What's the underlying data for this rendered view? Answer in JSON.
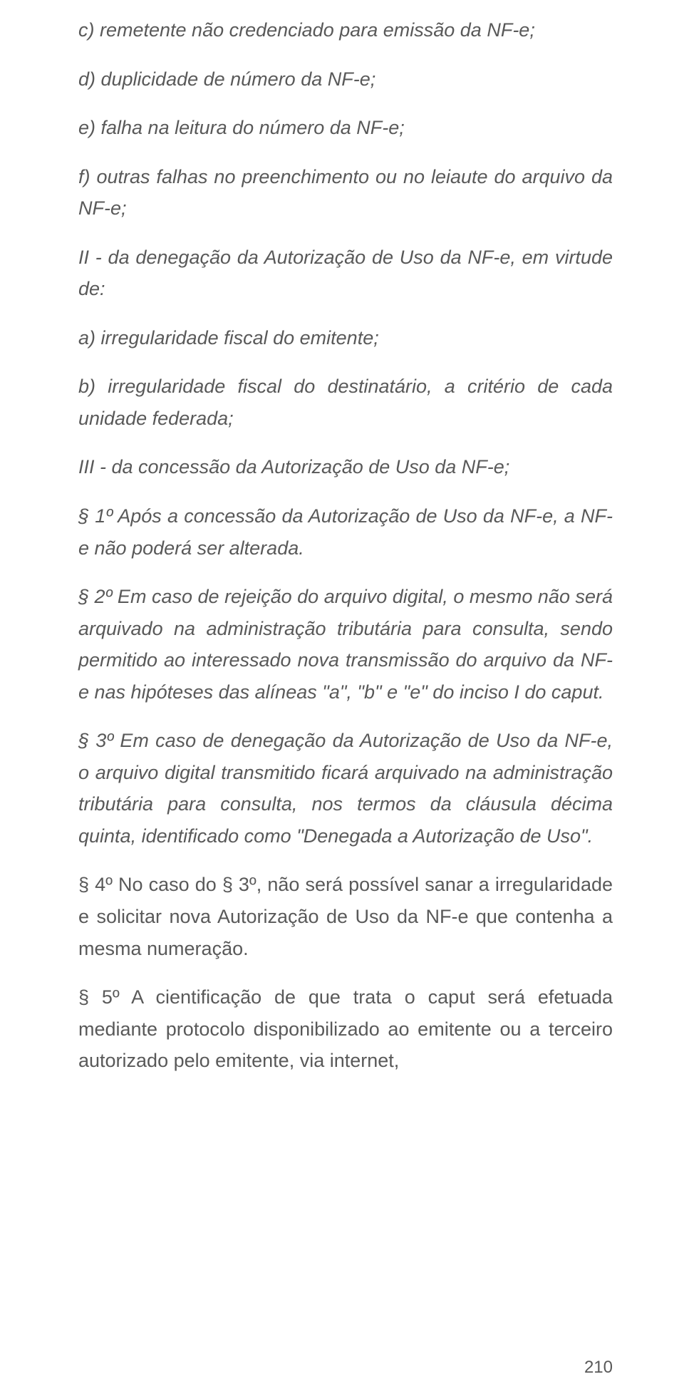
{
  "paragraphs": {
    "p1": "c) remetente não credenciado para emissão da NF-e;",
    "p2": "d) duplicidade de número da NF-e;",
    "p3": "e) falha na leitura do número da NF-e;",
    "p4": "f) outras falhas no preenchimento ou no leiaute do arquivo da NF-e;",
    "p5": "II - da denegação da Autorização de Uso da NF-e, em virtude de:",
    "p6": "a) irregularidade fiscal do emitente;",
    "p7": "b) irregularidade fiscal do destinatário, a critério de cada unidade federada;",
    "p8": "III - da concessão da Autorização de Uso da NF-e;",
    "p9": "§ 1º Após a concessão da Autorização de Uso da NF-e, a NF-e não poderá ser alterada.",
    "p10": "§ 2º Em caso de rejeição do arquivo digital, o mesmo não será arquivado na administração tributária para consulta, sendo permitido ao interessado nova transmissão do arquivo da NF-e nas hipóteses das alíneas \"a\", \"b\" e \"e\" do inciso I do caput.",
    "p11": "§ 3º Em caso de denegação da Autorização de Uso da NF-e, o arquivo digital transmitido ficará arquivado na administração tributária para consulta, nos termos da cláusula décima quinta, identificado como \"Denegada a Autorização de Uso\".",
    "p12": "§ 4º No caso do § 3º, não será possível sanar a irregularidade e solicitar nova Autorização de Uso da NF-e que contenha a mesma numeração.",
    "p13": "§ 5º A cientificação de que trata o caput será efetuada mediante protocolo disponibilizado ao emitente ou a terceiro autorizado pelo emitente, via internet,"
  },
  "page_number": "210",
  "colors": {
    "text": "#595959",
    "background": "#ffffff"
  }
}
